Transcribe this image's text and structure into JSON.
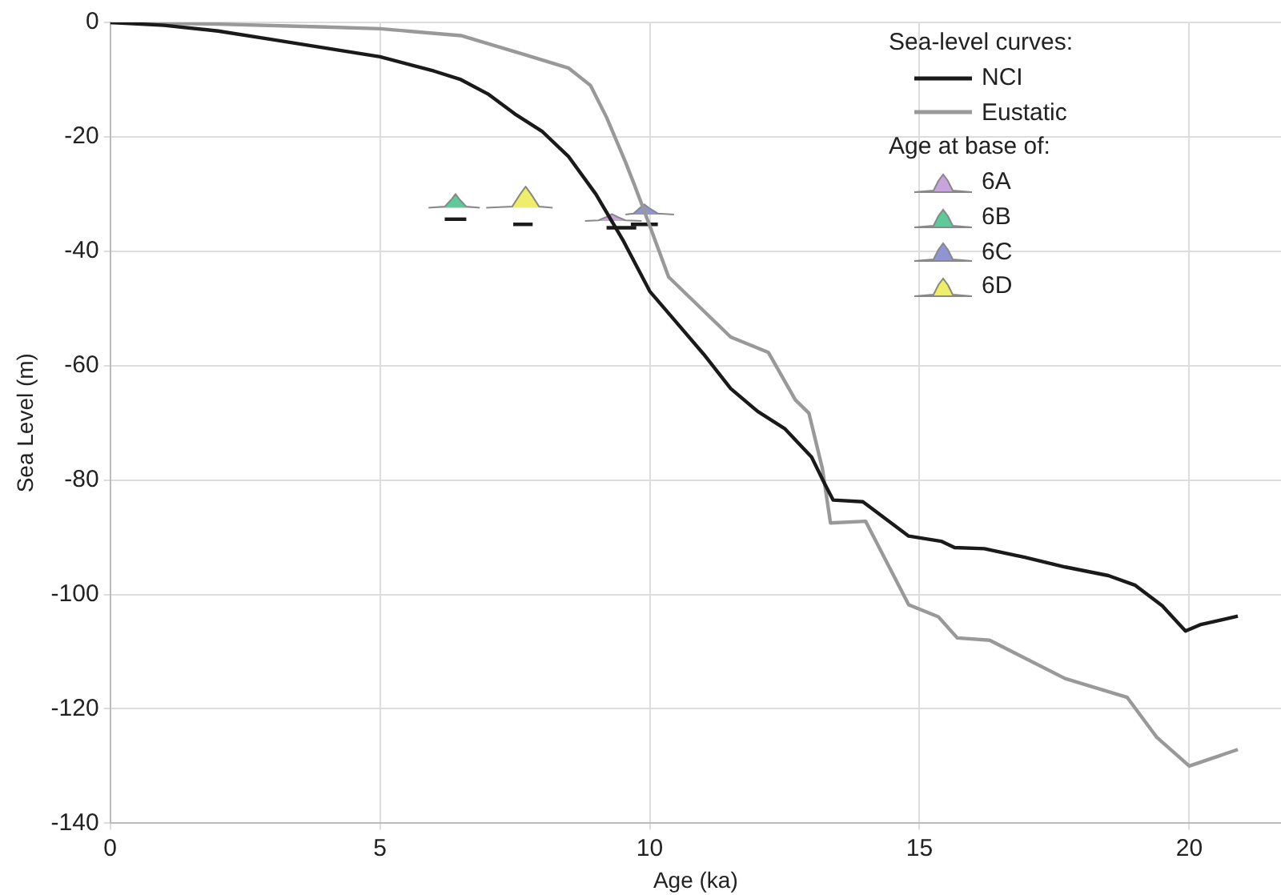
{
  "chart_data": {
    "type": "line",
    "xlabel": "Age (ka)",
    "ylabel": "Sea Level (m)",
    "xlim": [
      0,
      21.7
    ],
    "xticks": [
      0,
      5,
      10,
      15,
      20
    ],
    "ylim": [
      -140,
      0
    ],
    "yticks": [
      -140,
      -120,
      -100,
      -80,
      -60,
      -40,
      -20,
      0
    ],
    "grid": true,
    "legend": "top right",
    "legend_title": "Sea-level curves:",
    "annotations": [
      "Age at base of:"
    ],
    "series": [
      {
        "name": "NCI",
        "type": "line",
        "color": "#1a1a1a",
        "x": [
          0,
          1,
          2,
          3,
          4,
          5,
          6,
          6.5,
          7,
          7.5,
          8,
          8.5,
          9,
          9.5,
          10,
          10.5,
          11,
          11.5,
          12,
          12.5,
          13,
          13.24,
          13.4,
          13.95,
          14.8,
          15.4,
          15.65,
          16.2,
          16.95,
          17.7,
          18.5,
          19,
          19.5,
          19.93,
          20.2,
          20.9
        ],
        "values": [
          0,
          -0.5,
          -1.5,
          -3,
          -4.5,
          -6,
          -8.5,
          -10,
          -12.5,
          -16,
          -19,
          -23.5,
          -30,
          -38,
          -47,
          -52.5,
          -58,
          -64,
          -68,
          -71,
          -76,
          -80.6,
          -83.5,
          -83.8,
          -89.8,
          -90.7,
          -91.8,
          -92,
          -93.5,
          -95.2,
          -96.7,
          -98.4,
          -102,
          -106.4,
          -105.3,
          -103.8
        ]
      },
      {
        "name": "Eustatic",
        "type": "line",
        "color": "#999999",
        "x": [
          0,
          2,
          4,
          5,
          6.5,
          7.7,
          8.5,
          8.9,
          9.2,
          9.55,
          9.7,
          9.9,
          10.35,
          11.5,
          12.2,
          12.7,
          12.95,
          13.2,
          13.35,
          14,
          14.8,
          15.35,
          15.7,
          16.3,
          17.7,
          18.85,
          19.4,
          20,
          20.9
        ],
        "values": [
          0,
          -0.3,
          -0.8,
          -1.1,
          -2.3,
          -5.7,
          -8,
          -11,
          -16.6,
          -24.4,
          -28,
          -33,
          -44.5,
          -55,
          -57.7,
          -66,
          -68.3,
          -78,
          -87.5,
          -87.2,
          -101.8,
          -103.9,
          -107.6,
          -108,
          -114.7,
          -118,
          -125,
          -130,
          -127.1
        ]
      },
      {
        "name": "6A",
        "type": "area",
        "color": "#c9a3db",
        "x": [
          8.8,
          9.05,
          9.2,
          9.3,
          9.4,
          9.55,
          9.85
        ],
        "values": [
          -34.7,
          -34.6,
          -34,
          -33.5,
          -34,
          -34.6,
          -34.7
        ]
      },
      {
        "name": "6B",
        "type": "area",
        "color": "#5fc99a",
        "x": [
          5.9,
          6.2,
          6.32,
          6.4,
          6.48,
          6.6,
          6.85
        ],
        "values": [
          -32.4,
          -32.2,
          -31,
          -30,
          -31,
          -32.2,
          -32.4
        ]
      },
      {
        "name": "6C",
        "type": "area",
        "color": "#8e95d0",
        "x": [
          9.55,
          9.7,
          9.82,
          9.9,
          9.98,
          10.15,
          10.45
        ],
        "values": [
          -33.6,
          -33.4,
          -32.4,
          -31.8,
          -32.4,
          -33.4,
          -33.6
        ]
      },
      {
        "name": "6D",
        "type": "area",
        "color": "#eeee6a",
        "x": [
          6.97,
          7.45,
          7.6,
          7.7,
          7.8,
          7.95,
          8.2
        ],
        "values": [
          -32.4,
          -32.2,
          -30,
          -28.7,
          -30,
          -32.2,
          -32.4
        ]
      },
      {
        "color": "#1a1a1a",
        "x": [
          9.2,
          9.75
        ],
        "values": [
          -35.9,
          -35.9
        ]
      },
      {
        "color": "#1a1a1a",
        "x": [
          6.2,
          6.6
        ],
        "values": [
          -34.4,
          -34.4
        ]
      },
      {
        "color": "#1a1a1a",
        "x": [
          9.65,
          10.15
        ],
        "values": [
          -35.3,
          -35.3
        ]
      },
      {
        "color": "#1a1a1a",
        "x": [
          7.47,
          7.83
        ],
        "values": [
          -35.3,
          -35.3
        ]
      }
    ]
  }
}
